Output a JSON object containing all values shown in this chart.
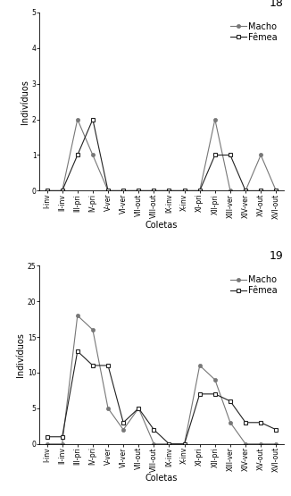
{
  "x_labels": [
    "I-inv",
    "II-inv",
    "III-pri",
    "IV-pri",
    "V-ver",
    "VI-ver",
    "VII-out",
    "VIII-out",
    "IX-inv",
    "X-inv",
    "XI-pri",
    "XII-pri",
    "XIII-ver",
    "XIV-ver",
    "XV-out",
    "XVI-out"
  ],
  "chart1": {
    "label": "18",
    "macho": [
      0,
      0,
      2,
      1,
      0,
      0,
      0,
      0,
      0,
      0,
      0,
      2,
      0,
      0,
      1,
      0
    ],
    "femea": [
      0,
      0,
      1,
      2,
      0,
      0,
      0,
      0,
      0,
      0,
      0,
      1,
      1,
      0,
      0,
      0
    ],
    "ylim": [
      0,
      5
    ],
    "yticks": [
      0,
      1,
      2,
      3,
      4,
      5
    ]
  },
  "chart2": {
    "label": "19",
    "macho": [
      0,
      0,
      18,
      16,
      5,
      2,
      5,
      0,
      0,
      0,
      11,
      9,
      3,
      0,
      0,
      0
    ],
    "femea": [
      1,
      1,
      13,
      11,
      11,
      3,
      5,
      2,
      0,
      0,
      7,
      7,
      6,
      3,
      3,
      2
    ],
    "ylim": [
      0,
      25
    ],
    "yticks": [
      0,
      5,
      10,
      15,
      20,
      25
    ]
  },
  "macho_color": "#777777",
  "femea_color": "#222222",
  "macho_marker": "o",
  "femea_marker": "s",
  "ylabel": "Indivíduos",
  "xlabel": "Coletas",
  "legend_macho": "Macho",
  "legend_femea": "Fêmea",
  "title_fontsize": 9,
  "axis_fontsize": 7,
  "tick_fontsize": 5.5,
  "legend_fontsize": 7
}
